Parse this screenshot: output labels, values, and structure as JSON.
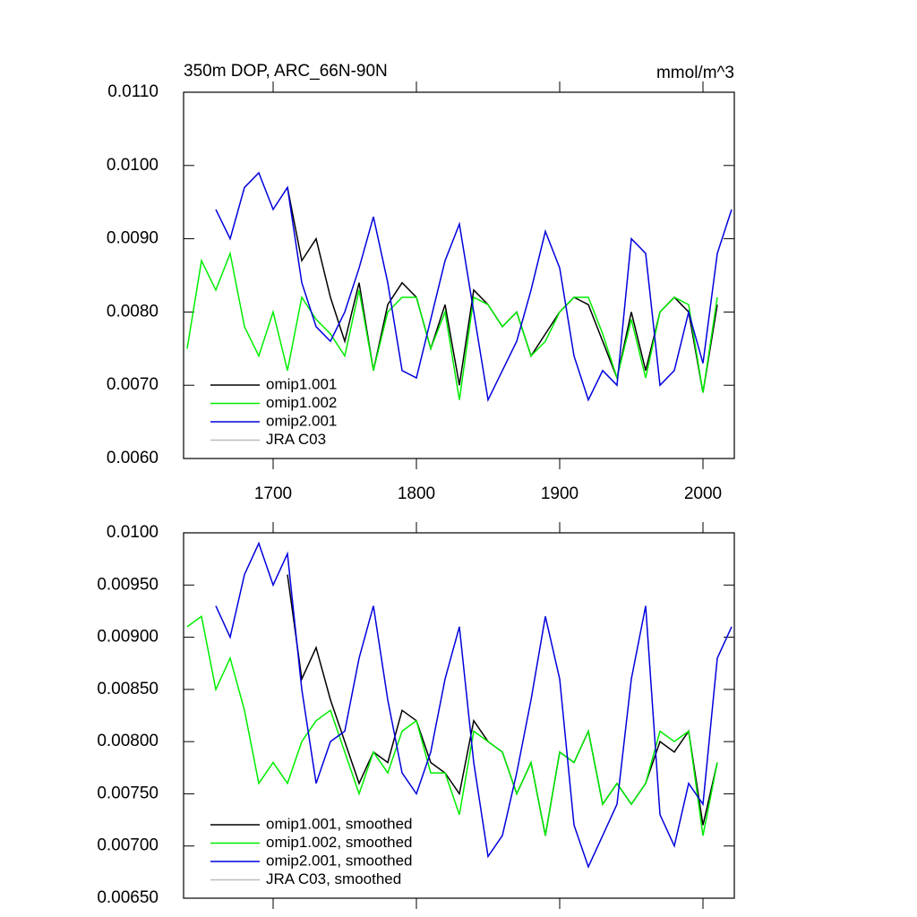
{
  "chart_data": [
    {
      "type": "line",
      "title": "350m DOP, ARC_66N-90N",
      "subtitle": "mmol/m^3",
      "x": [
        1640,
        1650,
        1660,
        1670,
        1680,
        1690,
        1700,
        1710,
        1720,
        1730,
        1740,
        1750,
        1760,
        1770,
        1780,
        1790,
        1800,
        1810,
        1820,
        1830,
        1840,
        1850,
        1860,
        1870,
        1880,
        1890,
        1900,
        1910,
        1920,
        1930,
        1940,
        1950,
        1960,
        1970,
        1980,
        1990,
        2000,
        2010,
        2020
      ],
      "xlim": [
        1637.5,
        2021.875
      ],
      "xticks": [
        1700,
        1800,
        1900,
        2000
      ],
      "ylim": [
        0.006,
        0.011
      ],
      "yticks": [
        {
          "value": 0.006,
          "label": "0.0060"
        },
        {
          "value": 0.007,
          "label": "0.0070"
        },
        {
          "value": 0.008,
          "label": "0.0080"
        },
        {
          "value": 0.009,
          "label": "0.0090"
        },
        {
          "value": 0.01,
          "label": "0.0100"
        },
        {
          "value": 0.011,
          "label": "0.0110"
        }
      ],
      "legend": "lower left",
      "series": [
        {
          "name": "omip1.001",
          "color": "#000000",
          "values": [
            null,
            null,
            null,
            null,
            null,
            null,
            null,
            0.0097,
            0.0087,
            0.009,
            0.0082,
            0.0076,
            0.0084,
            0.0072,
            0.0081,
            0.0084,
            0.0082,
            0.0075,
            0.0081,
            0.007,
            0.0083,
            0.0081,
            0.0078,
            0.008,
            0.0074,
            0.0077,
            0.008,
            0.0082,
            0.0081,
            0.0076,
            0.0071,
            0.008,
            0.0072,
            0.008,
            0.0082,
            0.008,
            0.0069,
            0.0081,
            null
          ]
        },
        {
          "name": "omip1.002",
          "color": "#00ee00",
          "values": [
            0.0075,
            0.0087,
            0.0083,
            0.0088,
            0.0078,
            0.0074,
            0.008,
            0.0072,
            0.0082,
            0.0079,
            0.0077,
            0.0074,
            0.0083,
            0.0072,
            0.008,
            0.0082,
            0.0082,
            0.0075,
            0.008,
            0.0068,
            0.0082,
            0.0081,
            0.0078,
            0.008,
            0.0074,
            0.0076,
            0.008,
            0.0082,
            0.0082,
            0.0077,
            0.0071,
            0.0079,
            0.0071,
            0.008,
            0.0082,
            0.0081,
            0.0069,
            0.0082,
            null
          ]
        },
        {
          "name": "omip2.001",
          "color": "#0000dd",
          "values": [
            null,
            null,
            0.0094,
            0.009,
            0.0097,
            0.0099,
            0.0094,
            0.0097,
            0.0084,
            0.0078,
            0.0076,
            0.008,
            0.0086,
            0.0093,
            0.0084,
            0.0072,
            0.0071,
            0.0079,
            0.0087,
            0.0092,
            0.008,
            0.0068,
            0.0072,
            0.0076,
            0.0083,
            0.0091,
            0.0086,
            0.0074,
            0.0068,
            0.0072,
            0.007,
            0.009,
            0.0088,
            0.007,
            0.0072,
            0.008,
            0.0073,
            0.0088,
            0.0094
          ]
        },
        {
          "name": "JRA C03",
          "color": "#bbbbbb",
          "values": [
            null,
            null,
            null,
            null,
            null,
            null,
            null,
            null,
            null,
            null,
            null,
            null,
            null,
            null,
            null,
            null,
            null,
            null,
            null,
            null,
            null,
            null,
            null,
            null,
            null,
            null,
            null,
            null,
            null,
            null,
            null,
            null,
            null,
            null,
            null,
            null,
            null,
            null,
            null
          ]
        }
      ]
    },
    {
      "type": "line",
      "x": [
        1640,
        1650,
        1660,
        1670,
        1680,
        1690,
        1700,
        1710,
        1720,
        1730,
        1740,
        1750,
        1760,
        1770,
        1780,
        1790,
        1800,
        1810,
        1820,
        1830,
        1840,
        1850,
        1860,
        1870,
        1880,
        1890,
        1900,
        1910,
        1920,
        1930,
        1940,
        1950,
        1960,
        1970,
        1980,
        1990,
        2000,
        2010,
        2020
      ],
      "xlim": [
        1637.5,
        2021.875
      ],
      "ylim": [
        0.0065,
        0.01
      ],
      "yticks": [
        {
          "value": 0.0065,
          "label": "0.00650"
        },
        {
          "value": 0.007,
          "label": "0.00700"
        },
        {
          "value": 0.0075,
          "label": "0.00750"
        },
        {
          "value": 0.008,
          "label": "0.00800"
        },
        {
          "value": 0.0085,
          "label": "0.00850"
        },
        {
          "value": 0.009,
          "label": "0.00900"
        },
        {
          "value": 0.0095,
          "label": "0.00950"
        },
        {
          "value": 0.01,
          "label": "0.0100"
        }
      ],
      "legend": "lower left",
      "series": [
        {
          "name": "omip1.001, smoothed",
          "color": "#000000",
          "values": [
            null,
            null,
            null,
            null,
            null,
            null,
            null,
            0.0096,
            0.0086,
            0.0089,
            0.0084,
            0.008,
            0.0076,
            0.0079,
            0.0078,
            0.0083,
            0.0082,
            0.0078,
            0.0077,
            0.0075,
            0.0082,
            0.008,
            0.0079,
            0.0075,
            0.0078,
            0.0071,
            0.0079,
            0.0078,
            0.0081,
            0.0074,
            0.0076,
            0.0074,
            0.0076,
            0.008,
            0.0079,
            0.0081,
            0.0072,
            0.0078,
            null
          ]
        },
        {
          "name": "omip1.002, smoothed",
          "color": "#00ee00",
          "values": [
            0.0091,
            0.0092,
            0.0085,
            0.0088,
            0.0083,
            0.0076,
            0.0078,
            0.0076,
            0.008,
            0.0082,
            0.0083,
            0.0079,
            0.0075,
            0.0079,
            0.0077,
            0.0081,
            0.0082,
            0.0077,
            0.0077,
            0.0073,
            0.0081,
            0.008,
            0.0079,
            0.0075,
            0.0078,
            0.0071,
            0.0079,
            0.0078,
            0.0081,
            0.0074,
            0.0076,
            0.0074,
            0.0076,
            0.0081,
            0.008,
            0.0081,
            0.0071,
            0.0078,
            null
          ]
        },
        {
          "name": "omip2.001, smoothed",
          "color": "#0000dd",
          "values": [
            null,
            null,
            0.0093,
            0.009,
            0.0096,
            0.0099,
            0.0095,
            0.0098,
            0.0085,
            0.0076,
            0.008,
            0.0081,
            0.0088,
            0.0093,
            0.0084,
            0.0077,
            0.0075,
            0.0079,
            0.0086,
            0.0091,
            0.0078,
            0.0069,
            0.0071,
            0.0077,
            0.0084,
            0.0092,
            0.0086,
            0.0072,
            0.0068,
            0.0071,
            0.0074,
            0.0086,
            0.0093,
            0.0073,
            0.007,
            0.0076,
            0.0074,
            0.0088,
            0.0091
          ]
        },
        {
          "name": "JRA C03, smoothed",
          "color": "#bbbbbb",
          "values": [
            null,
            null,
            null,
            null,
            null,
            null,
            null,
            null,
            null,
            null,
            null,
            null,
            null,
            null,
            null,
            null,
            null,
            null,
            null,
            null,
            null,
            null,
            null,
            null,
            null,
            null,
            null,
            null,
            null,
            null,
            null,
            null,
            null,
            null,
            null,
            null,
            null,
            null,
            null
          ]
        }
      ]
    }
  ]
}
